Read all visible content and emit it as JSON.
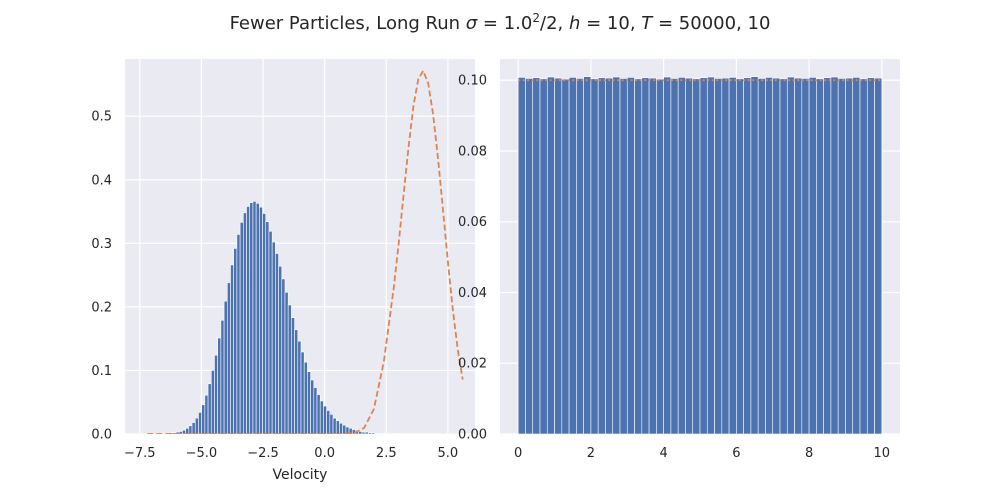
{
  "figure": {
    "title_text": "Fewer Particles, Long Run",
    "title_math": [
      {
        "t": "σ",
        "i": true
      },
      {
        "t": " = 1.0"
      },
      {
        "t": "2",
        "sup": true
      },
      {
        "t": "/2, "
      },
      {
        "t": "h",
        "i": true
      },
      {
        "t": " = 10, "
      },
      {
        "t": "T",
        "i": true
      },
      {
        "t": " = 50000"
      }
    ],
    "title_suffix": ", 10"
  },
  "colors": {
    "background": "#eaeaf2",
    "grid": "#ffffff",
    "bar": "#4c72b0",
    "curve": "#dd8452",
    "text": "#262626"
  },
  "chart_data": [
    {
      "type": "bar",
      "xlabel": "Velocity",
      "ylabel": "",
      "xlim": [
        -8.1,
        6.1
      ],
      "ylim": [
        0,
        0.59
      ],
      "xticks": [
        -7.5,
        -5.0,
        -2.5,
        0.0,
        2.5,
        5.0
      ],
      "xtick_labels": [
        "−7.5",
        "−5.0",
        "−2.5",
        "0.0",
        "2.5",
        "5.0"
      ],
      "yticks": [
        0.0,
        0.1,
        0.2,
        0.3,
        0.4,
        0.5
      ],
      "ytick_labels": [
        "0.0",
        "0.1",
        "0.2",
        "0.3",
        "0.4",
        "0.5"
      ],
      "grid": true,
      "histogram": {
        "bin_start": -7.2,
        "bin_width": 0.13,
        "values": [
          0.001,
          0.001,
          0.001,
          0.001,
          0.001,
          0.001,
          0.001,
          0.002,
          0.002,
          0.003,
          0.004,
          0.006,
          0.009,
          0.013,
          0.018,
          0.025,
          0.034,
          0.046,
          0.061,
          0.079,
          0.1,
          0.124,
          0.151,
          0.179,
          0.209,
          0.238,
          0.266,
          0.292,
          0.314,
          0.333,
          0.348,
          0.358,
          0.364,
          0.366,
          0.363,
          0.357,
          0.347,
          0.334,
          0.319,
          0.302,
          0.284,
          0.264,
          0.244,
          0.223,
          0.203,
          0.183,
          0.164,
          0.146,
          0.129,
          0.113,
          0.098,
          0.085,
          0.073,
          0.062,
          0.052,
          0.044,
          0.037,
          0.031,
          0.025,
          0.021,
          0.017,
          0.014,
          0.011,
          0.009,
          0.007,
          0.006,
          0.004,
          0.003,
          0.003,
          0.002,
          0.002,
          0.001,
          0.001,
          0.001,
          0.001,
          0.001,
          0.001,
          0.001
        ]
      },
      "curve": {
        "style": "dashed",
        "x": [
          -7.2,
          -6.6,
          -6.0,
          -5.4,
          -4.8,
          -4.2,
          -3.6,
          -3.0,
          -2.4,
          -1.8,
          -1.2,
          -0.6,
          0.0,
          0.4,
          0.8,
          1.2,
          1.6,
          2.0,
          2.4,
          2.8,
          3.0,
          3.2,
          3.4,
          3.6,
          3.8,
          4.0,
          4.2,
          4.4,
          4.6,
          4.8,
          5.0,
          5.2,
          5.4,
          5.6
        ],
        "y": [
          0,
          0,
          0,
          0,
          0,
          0,
          0,
          0,
          0,
          0,
          0,
          0,
          0,
          0,
          0.0002,
          0.0016,
          0.0095,
          0.0393,
          0.1135,
          0.2294,
          0.2985,
          0.3749,
          0.4511,
          0.5159,
          0.5583,
          0.5714,
          0.5517,
          0.503,
          0.4337,
          0.3528,
          0.2707,
          0.1957,
          0.1335,
          0.0858
        ]
      }
    },
    {
      "type": "bar",
      "xlabel": "",
      "ylabel": "",
      "xlim": [
        -0.5,
        10.5
      ],
      "ylim": [
        0,
        0.106
      ],
      "xticks": [
        0,
        2,
        4,
        6,
        8,
        10
      ],
      "xtick_labels": [
        "0",
        "2",
        "4",
        "6",
        "8",
        "10"
      ],
      "yticks": [
        0.0,
        0.02,
        0.04,
        0.06,
        0.08,
        0.1
      ],
      "ytick_labels": [
        "0.00",
        "0.02",
        "0.04",
        "0.06",
        "0.08",
        "0.10"
      ],
      "grid": true,
      "histogram": {
        "bin_start": 0,
        "bin_width": 0.2,
        "values": [
          0.1008,
          0.1005,
          0.1007,
          0.1004,
          0.1009,
          0.1006,
          0.1003,
          0.1008,
          0.1005,
          0.101,
          0.1004,
          0.1007,
          0.1006,
          0.1009,
          0.1005,
          0.1008,
          0.1004,
          0.1007,
          0.1006,
          0.1003,
          0.1009,
          0.1005,
          0.1008,
          0.1006,
          0.1004,
          0.1007,
          0.1009,
          0.1005,
          0.1006,
          0.1008,
          0.1004,
          0.1007,
          0.101,
          0.1005,
          0.1008,
          0.1006,
          0.1004,
          0.1009,
          0.1006,
          0.1005,
          0.1008,
          0.1004,
          0.1007,
          0.1009,
          0.1005,
          0.1006,
          0.1008,
          0.1004,
          0.1007,
          0.1006
        ]
      },
      "curve": {
        "style": "dotted",
        "x": [
          0,
          10
        ],
        "y": [
          0.1,
          0.1
        ]
      }
    }
  ]
}
